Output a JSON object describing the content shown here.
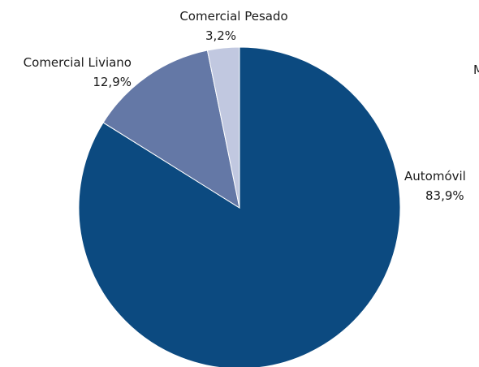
{
  "chart_data": {
    "type": "pie",
    "categories": [
      "Automóvil",
      "Comercial Liviano",
      "Comercial Pesado"
    ],
    "values": [
      83.9,
      12.9,
      3.2
    ],
    "value_labels": [
      "83,9%",
      "12,9%",
      "3,2%"
    ],
    "colors": [
      "#0c4a80",
      "#6478a6",
      "#c1c8e0"
    ],
    "start_angle_deg": 0,
    "direction": "clockwise",
    "truncated_edge_text": "M"
  }
}
